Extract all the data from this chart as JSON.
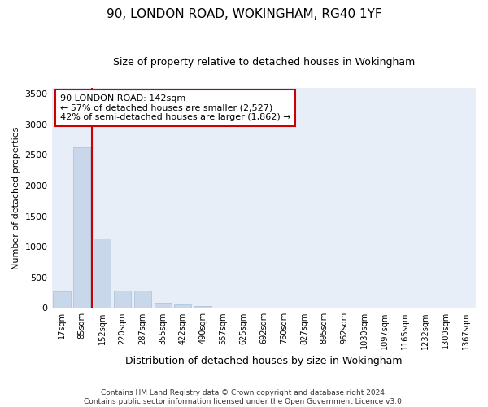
{
  "title1": "90, LONDON ROAD, WOKINGHAM, RG40 1YF",
  "title2": "Size of property relative to detached houses in Wokingham",
  "xlabel": "Distribution of detached houses by size in Wokingham",
  "ylabel": "Number of detached properties",
  "bar_labels": [
    "17sqm",
    "85sqm",
    "152sqm",
    "220sqm",
    "287sqm",
    "355sqm",
    "422sqm",
    "490sqm",
    "557sqm",
    "625sqm",
    "692sqm",
    "760sqm",
    "827sqm",
    "895sqm",
    "962sqm",
    "1030sqm",
    "1097sqm",
    "1165sqm",
    "1232sqm",
    "1300sqm",
    "1367sqm"
  ],
  "bar_values": [
    270,
    2630,
    1140,
    285,
    285,
    85,
    55,
    35,
    0,
    0,
    0,
    0,
    0,
    0,
    0,
    0,
    0,
    0,
    0,
    0,
    0
  ],
  "bar_color": "#c8d8ea",
  "bar_edge_color": "#a8c0d8",
  "annotation_text": "90 LONDON ROAD: 142sqm\n← 57% of detached houses are smaller (2,527)\n42% of semi-detached houses are larger (1,862) →",
  "annotation_box_color": "#ffffff",
  "annotation_box_edge": "#cc0000",
  "red_line_color": "#cc0000",
  "ylim": [
    0,
    3600
  ],
  "yticks": [
    0,
    500,
    1000,
    1500,
    2000,
    2500,
    3000,
    3500
  ],
  "background_color": "#e8eef8",
  "grid_color": "#ffffff",
  "footer1": "Contains HM Land Registry data © Crown copyright and database right 2024.",
  "footer2": "Contains public sector information licensed under the Open Government Licence v3.0.",
  "title1_fontsize": 11,
  "title2_fontsize": 9,
  "ylabel_fontsize": 8,
  "xlabel_fontsize": 9
}
